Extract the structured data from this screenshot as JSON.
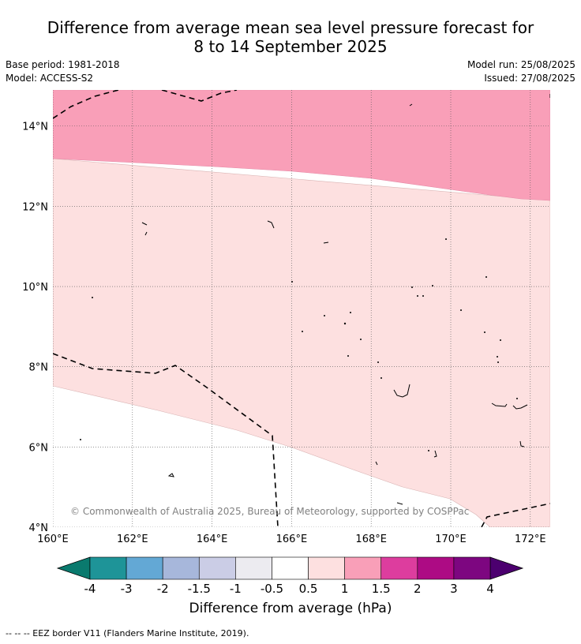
{
  "title_line1": "Difference from average mean sea level pressure forecast for",
  "title_line2": "8 to 14 September 2025",
  "base_period": "Base period: 1981-2018",
  "model": "Model: ACCESS-S2",
  "model_run": "Model run: 25/08/2025",
  "issued": "Issued: 27/08/2025",
  "copyright": "© Commonwealth of Australia 2025, Bureau of Meteorology, supported by COSPPac",
  "map": {
    "lon_ticks": [
      "160°E",
      "162°E",
      "164°E",
      "166°E",
      "168°E",
      "170°E",
      "172°E"
    ],
    "lat_ticks": [
      "4°N",
      "6°N",
      "8°N",
      "10°N",
      "12°N",
      "14°N"
    ],
    "lon_range": [
      160,
      172.5
    ],
    "lat_range": [
      4,
      14.9
    ],
    "gridlines": true
  },
  "colorbar": {
    "title": "Difference from average (hPa)",
    "tick_labels": [
      "-4",
      "-3",
      "-2",
      "-1.5",
      "-1",
      "-0.5",
      "0.5",
      "1",
      "1.5",
      "2",
      "3",
      "4"
    ],
    "colors": [
      "#0a7a6e",
      "#1e9498",
      "#63a8d5",
      "#a7b7db",
      "#cbcde6",
      "#ecebf0",
      "#ffffff",
      "#fde0e0",
      "#f99fb8",
      "#dd3d9e",
      "#ad0b84",
      "#7d0680",
      "#4c006f"
    ],
    "map_fill_classes": [
      "0.5 to 1",
      "1 to 1.5"
    ]
  },
  "footer": "-- -- -- EEZ border V11 (Flanders Marine Institute, 2019)."
}
